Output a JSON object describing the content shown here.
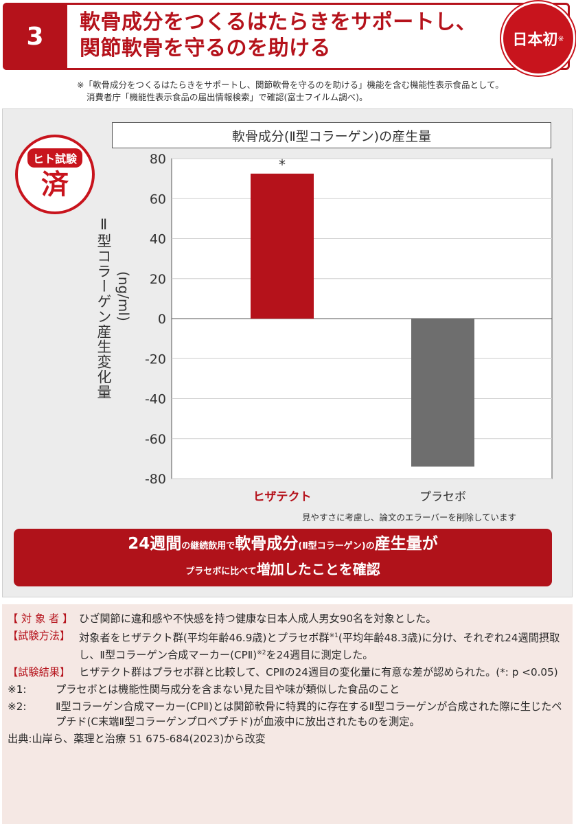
{
  "header": {
    "number": "3",
    "title_line1": "軟骨成分をつくるはたらきをサポートし、",
    "title_line2": "関節軟骨を守るのを助ける",
    "badge": "日本初",
    "badge_mark": "※"
  },
  "top_note": {
    "line1": "※「軟骨成分をつくるはたらきをサポートし、関節軟骨を守るのを助ける」機能を含む機能性表示食品として。",
    "line2": "消費者庁「機能性表示食品の届出情報検索」で確認(富士フイルム調べ)。"
  },
  "badge_test": {
    "line1": "ヒト試験",
    "line2": "済"
  },
  "chart_data": {
    "type": "bar",
    "title": "軟骨成分(Ⅱ型コラーゲン)の産生量",
    "ylabel": "Ⅱ型コラーゲン産生変化量",
    "yunit": "(ng/ml)",
    "ylim": [
      -80,
      80
    ],
    "yticks": [
      80,
      60,
      40,
      20,
      0,
      -20,
      -40,
      -60,
      -80
    ],
    "grid": true,
    "categories": [
      "ヒザテクト",
      "プラセボ"
    ],
    "values": [
      72.5,
      -74
    ],
    "colors": [
      "#b5121b",
      "#6e6e6e"
    ],
    "category_colors": [
      "#b5121b",
      "#333333"
    ],
    "annotation": "*"
  },
  "chart_note": "見やすさに考慮し、論文のエラーバーを削除しています",
  "banner": {
    "l1_a": "24週間",
    "l1_b": "の継続飲用で",
    "l1_c": "軟骨成分",
    "l1_d": "(Ⅱ型コラーゲン)",
    "l1_e": "の",
    "l1_f": "産生量が",
    "l2_a": "プラセボに比べて",
    "l2_b": "増加したことを確認"
  },
  "info": {
    "subject_label": "【 対 象 者 】",
    "subject_text": "ひざ関節に違和感や不快感を持つ健康な日本人成人男女90名を対象とした。",
    "method_label": "【試験方法】",
    "method_text_a": "対象者をヒザテクト群(平均年齢46.9歳)とプラセボ群",
    "method_sup1": "※1",
    "method_text_b": "(平均年齢48.3歳)に分け、それぞれ24週間摂取し、Ⅱ型コラーゲン合成マーカー(CPⅡ)",
    "method_sup2": "※2",
    "method_text_c": "を24週目に測定した。",
    "result_label": "【試験結果】",
    "result_text": "ヒザテクト群はプラセボ群と比較して、CPⅡの24週目の変化量に有意な差が認められた。(*: p <0.05)",
    "note1_label": "※1:",
    "note1_text": "プラセボとは機能性関与成分を含まない見た目や味が類似した食品のこと",
    "note2_label": "※2:",
    "note2_text": "Ⅱ型コラーゲン合成マーカー(CPⅡ)とは関節軟骨に特異的に存在するⅡ型コラーゲンが合成された際に生じたペプチド(C末端Ⅱ型コラーゲンプロペプチド)が血液中に放出されたものを測定。",
    "source": "出典:山岸ら、薬理と治療 51 675-684(2023)から改変"
  }
}
